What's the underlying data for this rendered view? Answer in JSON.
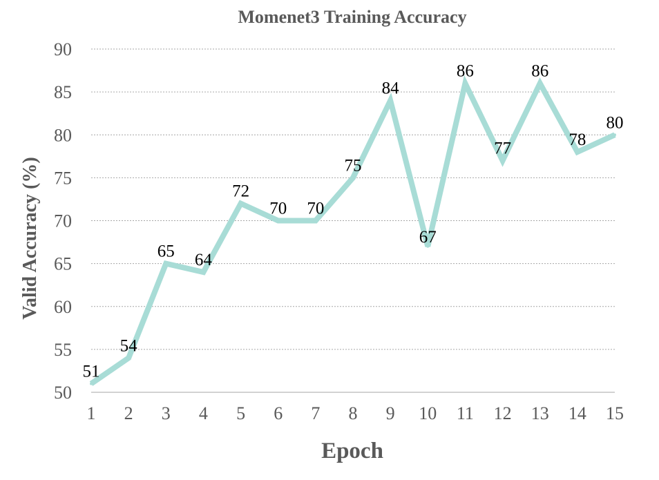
{
  "chart_data": {
    "type": "line",
    "title": "Momenet3 Training Accuracy",
    "xlabel": "Epoch",
    "ylabel": "Valid Accuracy (%)",
    "x": [
      1,
      2,
      3,
      4,
      5,
      6,
      7,
      8,
      9,
      10,
      11,
      12,
      13,
      14,
      15
    ],
    "series": [
      {
        "values": [
          51,
          54,
          65,
          64,
          72,
          70,
          70,
          75,
          84,
          67,
          86,
          77,
          86,
          78,
          80
        ],
        "color": "#a8dcd6"
      }
    ],
    "ylim": [
      50,
      90
    ],
    "yticks": [
      50,
      55,
      60,
      65,
      70,
      75,
      80,
      85,
      90
    ],
    "grid": true,
    "legend": "none",
    "data_labels": true
  }
}
